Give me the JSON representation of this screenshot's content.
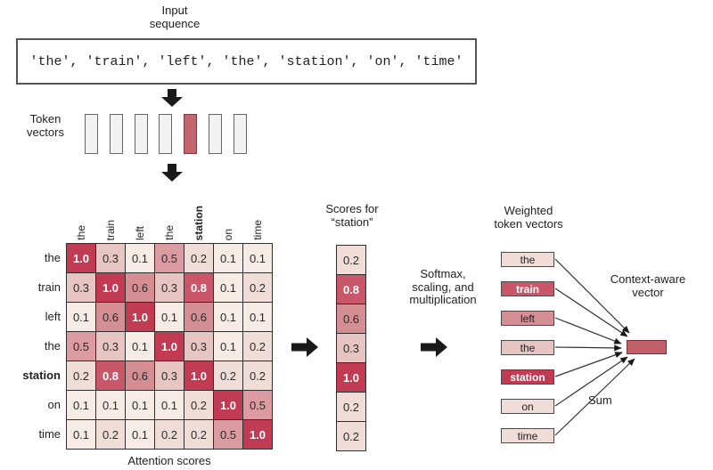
{
  "palette": {
    "0.1": "#f6ebe5",
    "0.2": "#f0ddd7",
    "0.3": "#e6c5c3",
    "0.5": "#db9ba0",
    "0.6": "#d58e93",
    "0.8": "#ca566a",
    "1.0": "#c13b52"
  },
  "input_sequence": {
    "label": "Input\nsequence",
    "tokens_text": "'the', 'train', 'left', 'the', 'station', 'on', 'time'"
  },
  "token_vectors": {
    "label": "Token\nvectors",
    "count": 7,
    "highlighted_index": 4,
    "bar_color": "#c2656c",
    "default_color": "#f2f2f2"
  },
  "attention_matrix": {
    "caption": "Attention scores",
    "tokens": [
      "the",
      "train",
      "left",
      "the",
      "station",
      "on",
      "time"
    ],
    "emphasized_token_index": 4,
    "rows": [
      [
        1.0,
        0.3,
        0.1,
        0.5,
        0.2,
        0.1,
        0.1
      ],
      [
        0.3,
        1.0,
        0.6,
        0.3,
        0.8,
        0.1,
        0.2
      ],
      [
        0.1,
        0.6,
        1.0,
        0.1,
        0.6,
        0.1,
        0.1
      ],
      [
        0.5,
        0.3,
        0.1,
        1.0,
        0.3,
        0.1,
        0.2
      ],
      [
        0.2,
        0.8,
        0.6,
        0.3,
        1.0,
        0.2,
        0.2
      ],
      [
        0.1,
        0.1,
        0.1,
        0.1,
        0.2,
        1.0,
        0.5
      ],
      [
        0.1,
        0.2,
        0.1,
        0.2,
        0.2,
        0.5,
        1.0
      ]
    ]
  },
  "scores_column": {
    "label": "Scores for\n“station”",
    "values": [
      0.2,
      0.8,
      0.6,
      0.3,
      1.0,
      0.2,
      0.2
    ]
  },
  "transform_step_label": "Softmax,\nscaling, and\nmultiplication",
  "weighted_vectors": {
    "label": "Weighted\ntoken vectors",
    "items": [
      {
        "token": "the",
        "weight": 0.2
      },
      {
        "token": "train",
        "weight": 0.8
      },
      {
        "token": "left",
        "weight": 0.6
      },
      {
        "token": "the",
        "weight": 0.3
      },
      {
        "token": "station",
        "weight": 1.0
      },
      {
        "token": "on",
        "weight": 0.2
      },
      {
        "token": "time",
        "weight": 0.2
      }
    ]
  },
  "output_vector": {
    "label": "Context-aware\nvector",
    "sum_label": "Sum",
    "color": "#c2606a"
  }
}
